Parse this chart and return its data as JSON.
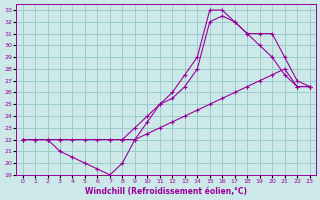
{
  "xlabel": "Windchill (Refroidissement éolien,°C)",
  "background_color": "#cce8e8",
  "grid_color": "#99cccc",
  "line_color": "#990099",
  "xlim": [
    -0.5,
    23.5
  ],
  "ylim": [
    19,
    33.5
  ],
  "xticks": [
    0,
    1,
    2,
    3,
    4,
    5,
    6,
    7,
    8,
    9,
    10,
    11,
    12,
    13,
    14,
    15,
    16,
    17,
    18,
    19,
    20,
    21,
    22,
    23
  ],
  "yticks": [
    19,
    20,
    21,
    22,
    23,
    24,
    25,
    26,
    27,
    28,
    29,
    30,
    31,
    32,
    33
  ],
  "line1_x": [
    0,
    1,
    2,
    3,
    4,
    5,
    6,
    7,
    8,
    9,
    10,
    11,
    12,
    13,
    14,
    15,
    16,
    17,
    18,
    19,
    20,
    21,
    22,
    23
  ],
  "line1_y": [
    22,
    22,
    22,
    21,
    20.5,
    20,
    19.5,
    19,
    20,
    22,
    23.5,
    25,
    26,
    27.5,
    29,
    33,
    33,
    32,
    31,
    30,
    29,
    27.5,
    26.5,
    26.5
  ],
  "line2_x": [
    0,
    1,
    2,
    3,
    7,
    8,
    9,
    10,
    11,
    12,
    13,
    14,
    15,
    16,
    17,
    18,
    19,
    20,
    21,
    22,
    23
  ],
  "line2_y": [
    22,
    22,
    22,
    22,
    22,
    22,
    23,
    24,
    25,
    25.5,
    26.5,
    28,
    32,
    32.5,
    32,
    31,
    31,
    31,
    29,
    27,
    26.5
  ],
  "line3_x": [
    0,
    1,
    2,
    3,
    4,
    5,
    6,
    7,
    8,
    9,
    10,
    11,
    12,
    13,
    14,
    15,
    16,
    17,
    18,
    19,
    20,
    21,
    22,
    23
  ],
  "line3_y": [
    22,
    22,
    22,
    22,
    22,
    22,
    22,
    22,
    22,
    22,
    22.5,
    23,
    23.5,
    24,
    24.5,
    25,
    25.5,
    26,
    26.5,
    27,
    27.5,
    28,
    26.5,
    26.5
  ]
}
